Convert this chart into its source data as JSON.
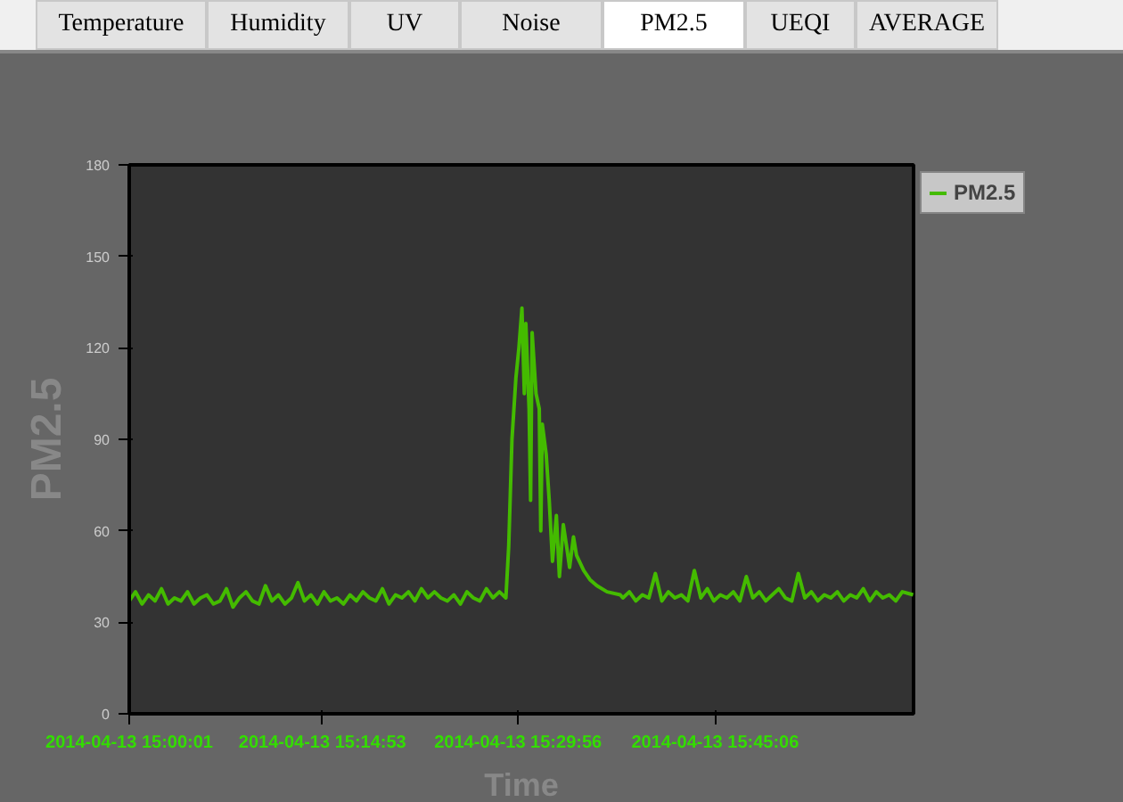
{
  "chart_data": {
    "type": "line",
    "annotations": [
      "Temperature",
      "Humidity",
      "UV",
      "Noise",
      "PM2.5",
      "UEQI",
      "AVERAGE"
    ],
    "xlabel": "Time",
    "ylabel": "PM2.5",
    "xlim": [
      "2014-04-13T15:00:01",
      "2014-04-13T16:00:22"
    ],
    "ylim": [
      0,
      180
    ],
    "xticks": [
      {
        "value": "2014-04-13T15:00:01",
        "label": "2014-04-13 15:00:01"
      },
      {
        "value": "2014-04-13T15:14:53",
        "label": "2014-04-13 15:14:53"
      },
      {
        "value": "2014-04-13T15:29:56",
        "label": "2014-04-13 15:29:56"
      },
      {
        "value": "2014-04-13T15:45:06",
        "label": "2014-04-13 15:45:06"
      }
    ],
    "yticks": [
      0,
      30,
      60,
      90,
      120,
      150,
      180
    ],
    "legend": "right",
    "marker": "none",
    "line_style": "solid",
    "series": [
      {
        "name": "PM2.5",
        "color": "#44bb00",
        "x": [
          "2014-04-13T15:00:01",
          "2014-04-13T15:00:30",
          "2014-04-13T15:01:00",
          "2014-04-13T15:01:30",
          "2014-04-13T15:02:00",
          "2014-04-13T15:02:30",
          "2014-04-13T15:03:00",
          "2014-04-13T15:03:30",
          "2014-04-13T15:04:00",
          "2014-04-13T15:04:30",
          "2014-04-13T15:05:00",
          "2014-04-13T15:05:30",
          "2014-04-13T15:06:00",
          "2014-04-13T15:06:30",
          "2014-04-13T15:07:00",
          "2014-04-13T15:07:30",
          "2014-04-13T15:08:00",
          "2014-04-13T15:08:30",
          "2014-04-13T15:09:00",
          "2014-04-13T15:09:30",
          "2014-04-13T15:10:00",
          "2014-04-13T15:10:30",
          "2014-04-13T15:11:00",
          "2014-04-13T15:11:30",
          "2014-04-13T15:12:00",
          "2014-04-13T15:12:30",
          "2014-04-13T15:13:00",
          "2014-04-13T15:13:30",
          "2014-04-13T15:14:00",
          "2014-04-13T15:14:30",
          "2014-04-13T15:15:00",
          "2014-04-13T15:15:30",
          "2014-04-13T15:16:00",
          "2014-04-13T15:16:30",
          "2014-04-13T15:17:00",
          "2014-04-13T15:17:30",
          "2014-04-13T15:18:00",
          "2014-04-13T15:18:30",
          "2014-04-13T15:19:00",
          "2014-04-13T15:19:30",
          "2014-04-13T15:20:00",
          "2014-04-13T15:20:30",
          "2014-04-13T15:21:00",
          "2014-04-13T15:21:30",
          "2014-04-13T15:22:00",
          "2014-04-13T15:22:30",
          "2014-04-13T15:23:00",
          "2014-04-13T15:23:30",
          "2014-04-13T15:24:00",
          "2014-04-13T15:24:30",
          "2014-04-13T15:25:00",
          "2014-04-13T15:25:30",
          "2014-04-13T15:26:00",
          "2014-04-13T15:26:30",
          "2014-04-13T15:27:00",
          "2014-04-13T15:27:30",
          "2014-04-13T15:28:00",
          "2014-04-13T15:28:30",
          "2014-04-13T15:29:00",
          "2014-04-13T15:29:13",
          "2014-04-13T15:29:28",
          "2014-04-13T15:29:46",
          "2014-04-13T15:30:00",
          "2014-04-13T15:30:14",
          "2014-04-13T15:30:25",
          "2014-04-13T15:30:32",
          "2014-04-13T15:30:47",
          "2014-04-13T15:30:54",
          "2014-04-13T15:31:01",
          "2014-04-13T15:31:19",
          "2014-04-13T15:31:34",
          "2014-04-13T15:31:41",
          "2014-04-13T15:31:48",
          "2014-04-13T15:32:06",
          "2014-04-13T15:32:20",
          "2014-04-13T15:32:35",
          "2014-04-13T15:32:53",
          "2014-04-13T15:33:07",
          "2014-04-13T15:33:25",
          "2014-04-13T15:33:40",
          "2014-04-13T15:33:54",
          "2014-04-13T15:34:12",
          "2014-04-13T15:34:26",
          "2014-04-13T15:34:59",
          "2014-04-13T15:35:28",
          "2014-04-13T15:36:00",
          "2014-04-13T15:36:47",
          "2014-04-13T15:37:48",
          "2014-04-13T15:38:00",
          "2014-04-13T15:38:30",
          "2014-04-13T15:39:00",
          "2014-04-13T15:39:30",
          "2014-04-13T15:40:00",
          "2014-04-13T15:40:30",
          "2014-04-13T15:41:00",
          "2014-04-13T15:41:30",
          "2014-04-13T15:42:00",
          "2014-04-13T15:42:30",
          "2014-04-13T15:43:00",
          "2014-04-13T15:43:30",
          "2014-04-13T15:44:00",
          "2014-04-13T15:44:30",
          "2014-04-13T15:45:00",
          "2014-04-13T15:45:30",
          "2014-04-13T15:46:00",
          "2014-04-13T15:46:30",
          "2014-04-13T15:47:00",
          "2014-04-13T15:47:30",
          "2014-04-13T15:48:00",
          "2014-04-13T15:48:30",
          "2014-04-13T15:49:00",
          "2014-04-13T15:49:30",
          "2014-04-13T15:50:00",
          "2014-04-13T15:50:30",
          "2014-04-13T15:51:00",
          "2014-04-13T15:51:30",
          "2014-04-13T15:52:00",
          "2014-04-13T15:52:30",
          "2014-04-13T15:53:00",
          "2014-04-13T15:53:30",
          "2014-04-13T15:54:00",
          "2014-04-13T15:54:30",
          "2014-04-13T15:55:00",
          "2014-04-13T15:55:30",
          "2014-04-13T15:56:00",
          "2014-04-13T15:56:30",
          "2014-04-13T15:57:00",
          "2014-04-13T15:57:30",
          "2014-04-13T15:58:00",
          "2014-04-13T15:58:30",
          "2014-04-13T15:59:00",
          "2014-04-13T15:59:30",
          "2014-04-13T16:00:20"
        ],
        "values": [
          37,
          40,
          36,
          39,
          37,
          41,
          36,
          38,
          37,
          40,
          36,
          38,
          39,
          36,
          37,
          41,
          35,
          38,
          40,
          37,
          36,
          42,
          37,
          39,
          36,
          38,
          43,
          37,
          39,
          36,
          40,
          37,
          38,
          36,
          39,
          37,
          40,
          38,
          37,
          41,
          36,
          39,
          38,
          40,
          37,
          41,
          38,
          40,
          38,
          37,
          39,
          36,
          40,
          38,
          37,
          41,
          38,
          40,
          38,
          55,
          90,
          110,
          120,
          133,
          105,
          128,
          100,
          70,
          125,
          105,
          100,
          60,
          95,
          85,
          70,
          50,
          65,
          45,
          62,
          55,
          48,
          58,
          52,
          47,
          44,
          42,
          40,
          39,
          38,
          40,
          37,
          39,
          38,
          46,
          37,
          40,
          38,
          39,
          37,
          47,
          38,
          41,
          37,
          39,
          38,
          40,
          37,
          45,
          38,
          40,
          37,
          39,
          41,
          38,
          37,
          46,
          38,
          40,
          37,
          39,
          38,
          40,
          37,
          39,
          38,
          41,
          37,
          40,
          38,
          39,
          37,
          40,
          39
        ]
      }
    ]
  }
}
